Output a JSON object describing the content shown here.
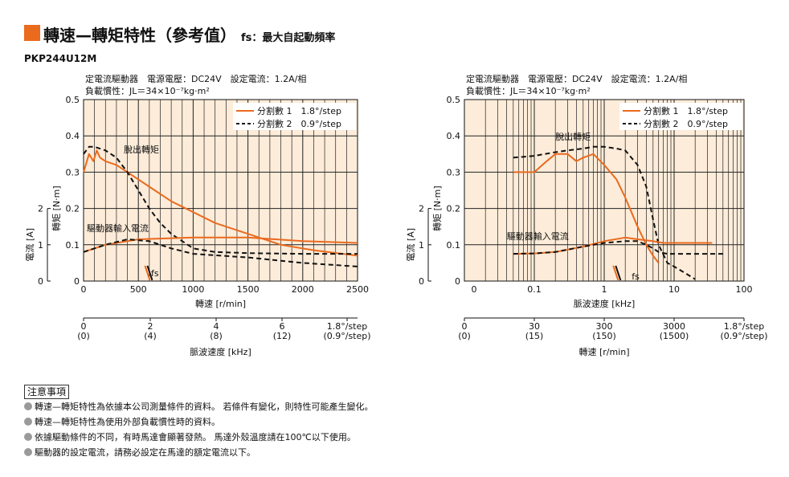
{
  "header": {
    "title": "轉速—轉矩特性（參考值）",
    "subtitle": "fs：最大自起動頻率",
    "model": "PKP244U12M"
  },
  "notes": {
    "heading": "注意事項",
    "items": [
      "轉速—轉矩特性為依據本公司測量條件的資料。 若條件有變化，則特性可能產生變化。",
      "轉速—轉矩特性為使用外部負載慣性時的資料。",
      "依據驅動條件的不同，有時馬達會顯著發熱。 馬達外殼溫度請在100℃以下使用。",
      "驅動器的設定電流，請務必設定在馬達的額定電流以下。"
    ]
  },
  "colors": {
    "background": "#fdecd9",
    "orange": "#ea6a1e",
    "black": "#111111"
  },
  "chart_data": [
    {
      "type": "line",
      "conditions_line1": "定電流驅動器　電源電壓：DC24V　設定電流：1.2A/相",
      "conditions_line2": "負載慣性：JL＝34×10⁻⁷kg·m²",
      "xlabel": "轉速 [r/min]",
      "ylabel_torque": "轉矩 [N·m]",
      "ylabel_current": "電流 [A]",
      "xlim": [
        0,
        2500
      ],
      "ylim": [
        0,
        0.5
      ],
      "x_ticks": [
        "0",
        "500",
        "1000",
        "1500",
        "2000",
        "2500"
      ],
      "y_ticks": [
        "0",
        "0.1",
        "0.2",
        "0.3",
        "0.4",
        "0.5"
      ],
      "current_ticks": [
        "0",
        "1",
        "2"
      ],
      "secondary_axis_label": "脈波速度 [kHz]",
      "secondary_ticks": [
        "0\n(0)",
        "2\n(4)",
        "4\n(8)",
        "6\n(12)",
        "1.8°/step\n(0.9°/step)"
      ],
      "legend": [
        "分割數 1　1.8°/step",
        "分割數 2　0.9°/step"
      ],
      "annotations": [
        "脫出轉矩",
        "驅動器輸入電流",
        "fs"
      ],
      "grid": true,
      "series": [
        {
          "name": "分割數 1　1.8°/step",
          "kind": "torque",
          "style": "solid",
          "x": [
            0,
            50,
            90,
            120,
            150,
            200,
            300,
            400,
            500,
            600,
            800,
            1000,
            1200,
            1500,
            1800,
            2100,
            2500
          ],
          "y": [
            0.3,
            0.35,
            0.33,
            0.36,
            0.34,
            0.33,
            0.32,
            0.3,
            0.28,
            0.26,
            0.22,
            0.19,
            0.16,
            0.13,
            0.1,
            0.085,
            0.07
          ]
        },
        {
          "name": "分割數 2　0.9°/step",
          "kind": "torque",
          "style": "dashed",
          "x": [
            0,
            50,
            100,
            200,
            300,
            400,
            500,
            600,
            700,
            800,
            900,
            1000,
            1200,
            1500,
            2000,
            2500
          ],
          "y": [
            0.35,
            0.37,
            0.37,
            0.36,
            0.34,
            0.3,
            0.25,
            0.2,
            0.16,
            0.13,
            0.11,
            0.09,
            0.08,
            0.077,
            0.075,
            0.075
          ]
        },
        {
          "name": "分割數 1　1.8°/step",
          "kind": "current",
          "style": "solid",
          "x": [
            0,
            200,
            500,
            1000,
            1500,
            2000,
            2500
          ],
          "y": [
            0.08,
            0.1,
            0.115,
            0.12,
            0.12,
            0.11,
            0.105
          ]
        },
        {
          "name": "分割數 2　0.9°/step",
          "kind": "current",
          "style": "dashed",
          "x": [
            0,
            200,
            400,
            600,
            800,
            1000,
            1500,
            2000,
            2500
          ],
          "y": [
            0.08,
            0.1,
            0.115,
            0.11,
            0.09,
            0.075,
            0.065,
            0.05,
            0.04
          ]
        }
      ]
    },
    {
      "type": "line",
      "conditions_line1": "定電流驅動器　電源電壓：DC24V　設定電流：1.2A/相",
      "conditions_line2": "負載慣性：JL＝34×10⁻⁷kg·m²",
      "xlabel": "脈波速度 [kHz]",
      "ylabel_torque": "轉矩 [N·m]",
      "ylabel_current": "電流 [A]",
      "x_scale": "log",
      "xlim": [
        0.01,
        100
      ],
      "ylim": [
        0,
        0.5
      ],
      "x_ticks": [
        "0",
        "0.1",
        "1",
        "10",
        "100"
      ],
      "y_ticks": [
        "0",
        "0.1",
        "0.2",
        "0.3",
        "0.4",
        "0.5"
      ],
      "current_ticks": [
        "0",
        "1",
        "2"
      ],
      "secondary_axis_label": "轉速 [r/min]",
      "secondary_ticks": [
        "0\n(0)",
        "30\n(15)",
        "300\n(150)",
        "3000\n(1500)",
        "1.8°/step\n(0.9°/step)"
      ],
      "legend": [
        "分割數 1　1.8°/step",
        "分割數 2　0.9°/step"
      ],
      "annotations": [
        "脫出轉矩",
        "驅動器輸入電流",
        "fs"
      ],
      "grid": true,
      "series": [
        {
          "name": "分割數 1　1.8°/step",
          "kind": "torque",
          "style": "solid",
          "x": [
            0.05,
            0.1,
            0.15,
            0.2,
            0.3,
            0.4,
            0.5,
            0.7,
            1,
            1.5,
            2,
            3,
            4,
            5,
            6
          ],
          "y": [
            0.3,
            0.3,
            0.33,
            0.35,
            0.35,
            0.33,
            0.34,
            0.35,
            0.32,
            0.28,
            0.23,
            0.15,
            0.1,
            0.07,
            0.05
          ]
        },
        {
          "name": "分割數 2　0.9°/step",
          "kind": "torque",
          "style": "dashed",
          "x": [
            0.05,
            0.1,
            0.2,
            0.3,
            0.5,
            0.7,
            1,
            1.5,
            2,
            3,
            4,
            5,
            6,
            8,
            10,
            15,
            20
          ],
          "y": [
            0.34,
            0.345,
            0.355,
            0.36,
            0.365,
            0.37,
            0.37,
            0.365,
            0.36,
            0.32,
            0.26,
            0.17,
            0.1,
            0.05,
            0.04,
            0.02,
            0.005
          ]
        },
        {
          "name": "分割數 1　1.8°/step",
          "kind": "current",
          "style": "solid",
          "x": [
            0.05,
            0.1,
            0.2,
            0.5,
            1,
            2,
            3,
            5,
            7,
            10,
            20,
            35
          ],
          "y": [
            0.075,
            0.076,
            0.08,
            0.095,
            0.11,
            0.12,
            0.115,
            0.11,
            0.105,
            0.105,
            0.105,
            0.105
          ]
        },
        {
          "name": "分割數 2　0.9°/step",
          "kind": "current",
          "style": "dashed",
          "x": [
            0.05,
            0.1,
            0.2,
            0.5,
            1,
            2,
            3,
            4,
            5,
            6,
            8,
            10,
            20,
            40,
            50
          ],
          "y": [
            0.075,
            0.076,
            0.08,
            0.095,
            0.105,
            0.11,
            0.11,
            0.1,
            0.09,
            0.08,
            0.075,
            0.075,
            0.075,
            0.075,
            0.075
          ]
        }
      ]
    }
  ]
}
